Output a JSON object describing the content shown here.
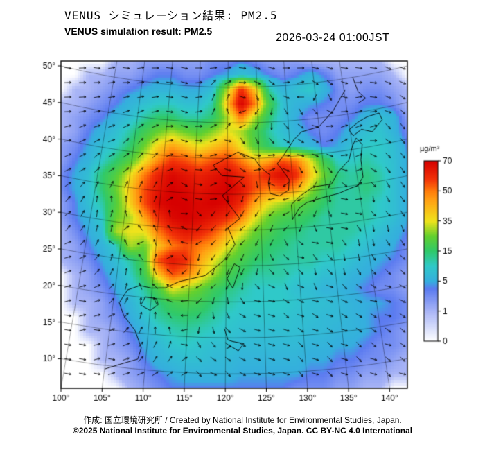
{
  "header": {
    "title_jp": "VENUS シミュレーション結果: PM2.5",
    "title_en": "VENUS simulation result: PM2.5",
    "timestamp": "2026-03-24 01:00JST"
  },
  "footer": {
    "credit": "作成: 国立環境研究所 / Created by National Institute for Environmental Studies, Japan.",
    "copyright": "©2025 National Institute for Environmental Studies, Japan. CC BY-NC 4.0 International"
  },
  "chart_data": {
    "type": "heatmap",
    "title": "VENUS simulation result: PM2.5",
    "variable": "PM2.5",
    "units": "µg/m³",
    "timestamp": "2026-03-24 01:00JST",
    "x_axis": {
      "ticks": [
        "100°",
        "105°",
        "110°",
        "115°",
        "120°",
        "125°",
        "130°",
        "135°",
        "140°"
      ],
      "range": [
        100,
        142.2
      ]
    },
    "y_axis": {
      "ticks": [
        "50°",
        "45°",
        "40°",
        "35°",
        "30°",
        "25°",
        "20°",
        "15°",
        "10°"
      ],
      "range": [
        6,
        50.6
      ]
    },
    "colorbar": {
      "title": "µg/m³",
      "tick_labels": [
        "70",
        "50",
        "35",
        "15",
        "5",
        "1",
        "0"
      ],
      "orientation": "vertical"
    },
    "color_scale": [
      {
        "v": 0,
        "c": "#ffffff"
      },
      {
        "v": 1,
        "c": "#a9b5f6"
      },
      {
        "v": 4,
        "c": "#5b7bf0"
      },
      {
        "v": 5,
        "c": "#35aede"
      },
      {
        "v": 10,
        "c": "#2fc9c9"
      },
      {
        "v": 15,
        "c": "#2fc96a"
      },
      {
        "v": 25,
        "c": "#63d02e"
      },
      {
        "v": 35,
        "c": "#efe31c"
      },
      {
        "v": 45,
        "c": "#ffa414"
      },
      {
        "v": 50,
        "c": "#ff7c0a"
      },
      {
        "v": 58,
        "c": "#f23208"
      },
      {
        "v": 70,
        "c": "#d60000"
      }
    ],
    "wind_vectors": {
      "depicted": true,
      "style": "black arrows on regular grid"
    },
    "grid": {
      "rows": "top 50°N to bottom ~6°N",
      "cols": "left 100°E to right ~142°E",
      "values": [
        [
          0,
          0,
          0,
          0,
          1,
          1,
          2,
          2,
          2,
          2,
          2,
          3,
          3,
          4,
          3,
          2,
          2,
          2,
          1,
          1,
          1,
          1,
          1,
          1,
          0,
          0
        ],
        [
          0,
          0,
          1,
          1,
          2,
          2,
          3,
          4,
          4,
          3,
          3,
          4,
          5,
          8,
          6,
          4,
          3,
          4,
          6,
          4,
          2,
          2,
          2,
          2,
          1,
          0
        ],
        [
          0,
          1,
          1,
          2,
          3,
          4,
          5,
          6,
          6,
          5,
          5,
          8,
          30,
          60,
          40,
          12,
          6,
          8,
          10,
          6,
          3,
          2,
          3,
          3,
          2,
          1
        ],
        [
          1,
          1,
          2,
          3,
          4,
          6,
          8,
          10,
          10,
          8,
          8,
          12,
          40,
          70,
          50,
          20,
          8,
          6,
          5,
          4,
          3,
          3,
          4,
          4,
          3,
          1
        ],
        [
          1,
          2,
          3,
          4,
          6,
          8,
          12,
          15,
          15,
          12,
          12,
          15,
          30,
          50,
          30,
          15,
          8,
          5,
          3,
          3,
          3,
          4,
          6,
          8,
          6,
          2
        ],
        [
          1,
          2,
          4,
          6,
          8,
          12,
          18,
          25,
          30,
          25,
          22,
          28,
          35,
          30,
          20,
          12,
          8,
          6,
          4,
          3,
          4,
          6,
          8,
          9,
          6,
          3
        ],
        [
          2,
          3,
          5,
          8,
          10,
          15,
          25,
          38,
          45,
          40,
          35,
          40,
          45,
          35,
          22,
          15,
          10,
          8,
          6,
          4,
          5,
          8,
          10,
          10,
          8,
          4
        ],
        [
          2,
          4,
          6,
          10,
          15,
          22,
          35,
          48,
          58,
          55,
          50,
          55,
          58,
          50,
          40,
          45,
          55,
          50,
          35,
          18,
          10,
          10,
          12,
          10,
          8,
          5
        ],
        [
          3,
          5,
          8,
          15,
          22,
          35,
          50,
          62,
          68,
          65,
          62,
          65,
          68,
          60,
          55,
          62,
          68,
          60,
          40,
          25,
          14,
          12,
          14,
          12,
          8,
          5
        ],
        [
          3,
          5,
          8,
          15,
          25,
          40,
          55,
          65,
          70,
          68,
          65,
          68,
          70,
          65,
          55,
          50,
          55,
          45,
          30,
          18,
          12,
          12,
          14,
          12,
          8,
          5
        ],
        [
          2,
          4,
          8,
          12,
          22,
          38,
          55,
          68,
          70,
          70,
          68,
          70,
          68,
          60,
          45,
          35,
          30,
          25,
          20,
          15,
          12,
          12,
          12,
          10,
          8,
          5
        ],
        [
          2,
          4,
          6,
          10,
          25,
          30,
          45,
          60,
          68,
          70,
          68,
          65,
          60,
          50,
          35,
          25,
          20,
          18,
          15,
          12,
          12,
          12,
          12,
          10,
          8,
          5
        ],
        [
          1,
          3,
          5,
          8,
          30,
          35,
          35,
          50,
          60,
          65,
          62,
          55,
          45,
          35,
          25,
          20,
          15,
          14,
          12,
          12,
          12,
          12,
          10,
          8,
          6,
          4
        ],
        [
          1,
          2,
          4,
          6,
          10,
          30,
          25,
          40,
          50,
          55,
          50,
          45,
          35,
          25,
          20,
          15,
          14,
          12,
          12,
          12,
          12,
          10,
          8,
          6,
          5,
          3
        ],
        [
          1,
          2,
          3,
          5,
          8,
          12,
          20,
          55,
          65,
          60,
          45,
          35,
          25,
          20,
          15,
          14,
          12,
          12,
          12,
          10,
          10,
          8,
          6,
          5,
          4,
          3
        ],
        [
          0,
          1,
          2,
          4,
          6,
          10,
          18,
          40,
          55,
          50,
          40,
          30,
          20,
          15,
          12,
          12,
          12,
          10,
          10,
          8,
          8,
          6,
          5,
          4,
          3,
          2
        ],
        [
          0,
          1,
          2,
          3,
          5,
          8,
          12,
          20,
          35,
          30,
          25,
          18,
          14,
          12,
          10,
          10,
          10,
          8,
          8,
          6,
          6,
          5,
          4,
          3,
          3,
          2
        ],
        [
          0,
          1,
          1,
          2,
          4,
          6,
          10,
          14,
          18,
          20,
          18,
          14,
          12,
          10,
          10,
          10,
          10,
          9,
          8,
          8,
          7,
          6,
          5,
          5,
          4,
          3
        ],
        [
          0,
          0,
          1,
          2,
          3,
          5,
          8,
          12,
          14,
          15,
          14,
          12,
          10,
          9,
          9,
          9,
          9,
          8,
          8,
          7,
          7,
          6,
          5,
          4,
          4,
          3
        ],
        [
          0,
          0,
          1,
          1,
          2,
          4,
          6,
          9,
          11,
          12,
          11,
          10,
          9,
          8,
          8,
          8,
          8,
          8,
          7,
          7,
          6,
          6,
          5,
          4,
          3,
          2
        ],
        [
          0,
          0,
          0,
          1,
          2,
          3,
          5,
          7,
          9,
          10,
          9,
          8,
          8,
          7,
          7,
          7,
          7,
          7,
          6,
          6,
          5,
          5,
          4,
          3,
          3,
          2
        ],
        [
          0,
          0,
          0,
          1,
          1,
          2,
          4,
          6,
          7,
          8,
          8,
          7,
          7,
          6,
          6,
          6,
          6,
          6,
          5,
          5,
          4,
          4,
          3,
          3,
          2,
          1
        ],
        [
          0,
          0,
          0,
          0,
          1,
          2,
          3,
          4,
          5,
          6,
          6,
          6,
          6,
          5,
          5,
          5,
          5,
          5,
          4,
          4,
          3,
          3,
          2,
          2,
          1,
          1
        ],
        [
          0,
          0,
          0,
          0,
          0,
          1,
          2,
          3,
          4,
          4,
          4,
          4,
          4,
          4,
          4,
          4,
          4,
          3,
          3,
          3,
          2,
          2,
          1,
          1,
          0,
          0
        ]
      ]
    },
    "coastlines": {
      "china_vietnam": [
        [
          124.3,
          39.9
        ],
        [
          121.7,
          40.9
        ],
        [
          117.8,
          39.0
        ],
        [
          119.2,
          37.6
        ],
        [
          122.6,
          37.4
        ],
        [
          119.3,
          34.8
        ],
        [
          121.9,
          31.6
        ],
        [
          120.2,
          30.3
        ],
        [
          121.2,
          28.0
        ],
        [
          119.6,
          25.7
        ],
        [
          117.1,
          23.6
        ],
        [
          113.6,
          22.6
        ],
        [
          111.8,
          21.6
        ],
        [
          109.9,
          21.4
        ],
        [
          108.3,
          21.6
        ],
        [
          106.7,
          20.8
        ],
        [
          105.8,
          18.9
        ],
        [
          106.6,
          17.2
        ],
        [
          108.3,
          15.3
        ],
        [
          109.3,
          13.0
        ],
        [
          109.0,
          11.4
        ],
        [
          106.8,
          10.4
        ],
        [
          105.0,
          9.5
        ]
      ],
      "korea_russia": [
        [
          124.3,
          39.9
        ],
        [
          125.3,
          38.6
        ],
        [
          126.6,
          37.6
        ],
        [
          126.3,
          36.5
        ],
        [
          126.5,
          35.0
        ],
        [
          127.9,
          34.6
        ],
        [
          129.3,
          35.3
        ],
        [
          129.5,
          36.8
        ],
        [
          128.5,
          38.3
        ],
        [
          127.8,
          39.1
        ],
        [
          128.7,
          40.0
        ],
        [
          130.7,
          42.3
        ],
        [
          132.0,
          43.3
        ],
        [
          135.0,
          43.8
        ],
        [
          137.7,
          45.8
        ],
        [
          140.2,
          48.4
        ]
      ],
      "honshu_kyushu": [
        [
          129.6,
          31.2
        ],
        [
          130.7,
          32.7
        ],
        [
          131.9,
          33.4
        ],
        [
          134.5,
          33.9
        ],
        [
          136.9,
          34.2
        ],
        [
          138.8,
          34.7
        ],
        [
          139.9,
          34.9
        ],
        [
          140.9,
          36.0
        ],
        [
          141.0,
          38.4
        ],
        [
          141.6,
          40.5
        ],
        [
          140.8,
          41.5
        ],
        [
          140.0,
          40.5
        ],
        [
          139.1,
          38.6
        ],
        [
          137.2,
          37.2
        ],
        [
          135.9,
          35.6
        ],
        [
          133.1,
          35.5
        ],
        [
          131.0,
          34.4
        ],
        [
          129.6,
          33.3
        ],
        [
          129.6,
          31.2
        ]
      ],
      "hokkaido": [
        [
          140.4,
          41.9
        ],
        [
          139.8,
          42.8
        ],
        [
          141.6,
          43.7
        ],
        [
          143.2,
          44.2
        ],
        [
          145.3,
          44.4
        ],
        [
          145.6,
          43.4
        ],
        [
          143.6,
          42.0
        ],
        [
          141.9,
          42.6
        ],
        [
          140.4,
          41.9
        ]
      ],
      "taiwan": [
        [
          121.1,
          25.3
        ],
        [
          121.9,
          24.8
        ],
        [
          120.9,
          21.9
        ],
        [
          120.1,
          23.2
        ],
        [
          121.1,
          25.3
        ]
      ],
      "hainan": [
        [
          109.2,
          20.1
        ],
        [
          110.7,
          20.0
        ],
        [
          111.0,
          19.2
        ],
        [
          110.0,
          18.3
        ],
        [
          108.7,
          18.9
        ],
        [
          109.2,
          20.1
        ]
      ],
      "sakhalin": [
        [
          141.9,
          50.0
        ],
        [
          142.4,
          47.9
        ],
        [
          143.5,
          46.8
        ],
        [
          142.1,
          46.3
        ]
      ],
      "luzon": [
        [
          119.8,
          16.3
        ],
        [
          120.3,
          14.7
        ],
        [
          120.9,
          14.5
        ],
        [
          122.3,
          14.2
        ],
        [
          121.6,
          13.2
        ],
        [
          120.7,
          13.8
        ],
        [
          120.1,
          13.5
        ]
      ]
    }
  }
}
